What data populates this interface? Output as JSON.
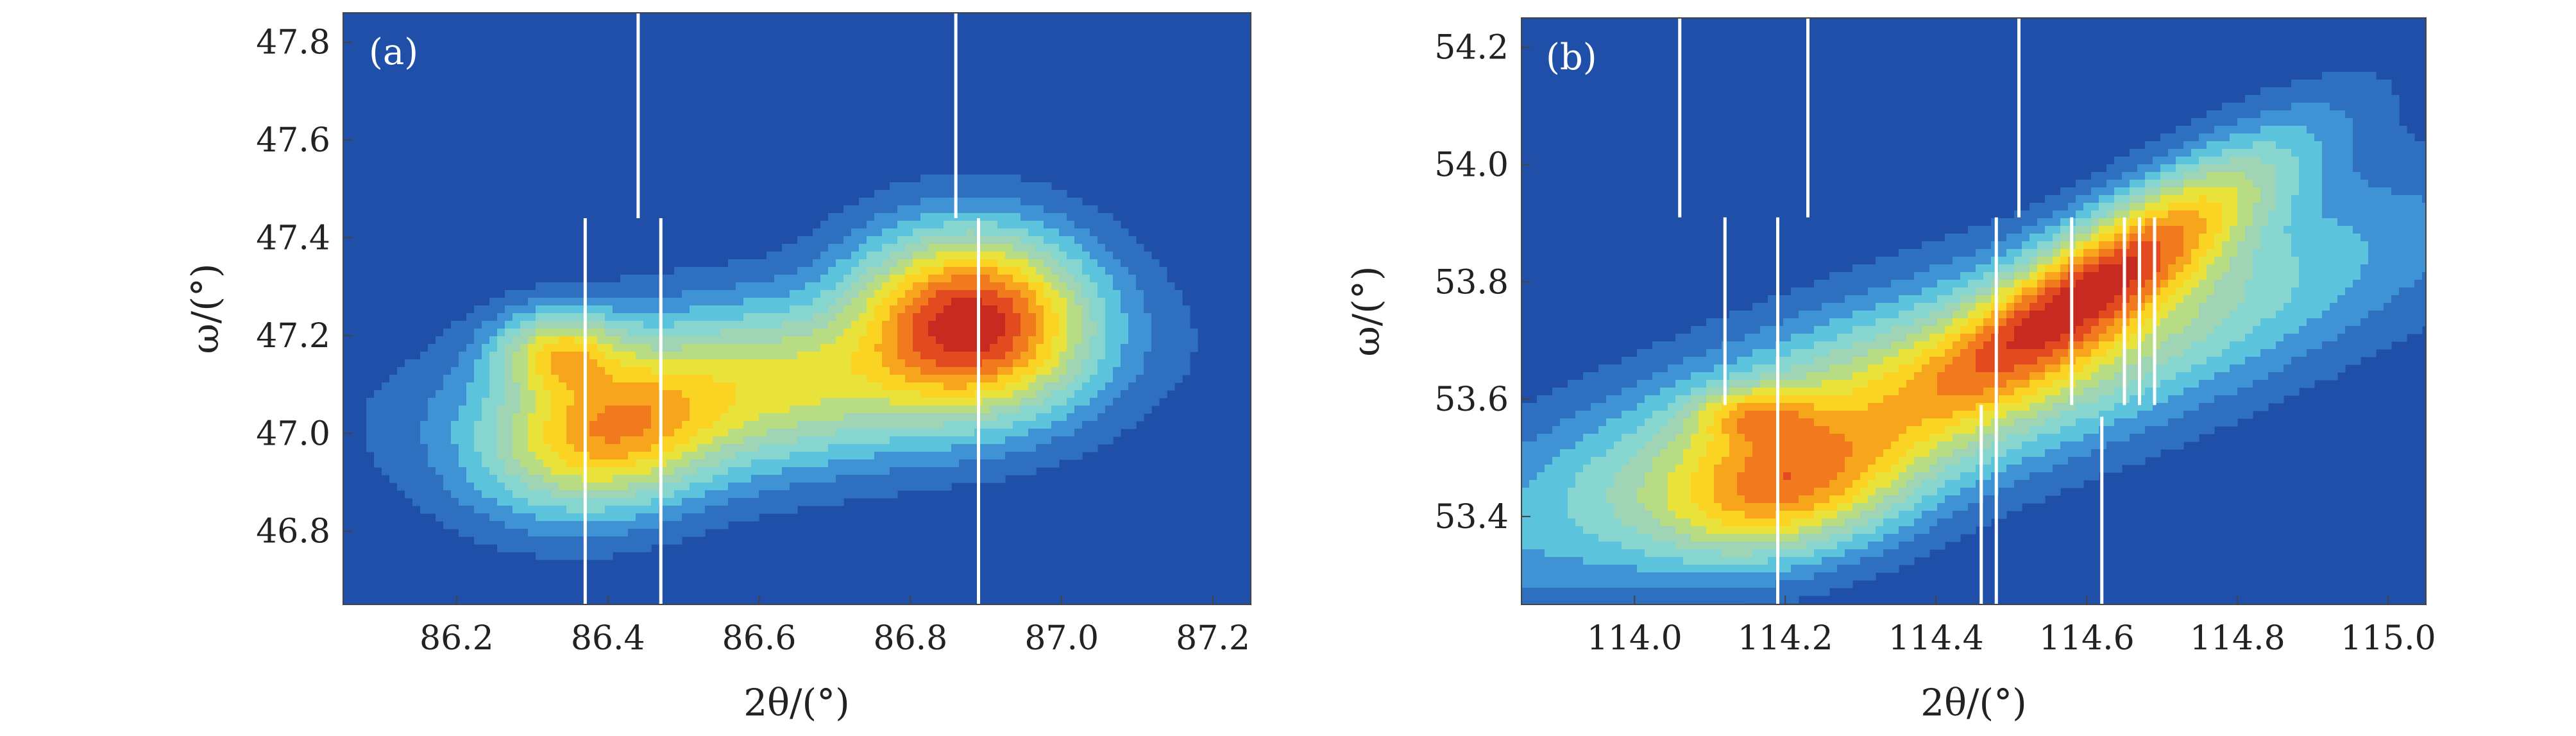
{
  "chart_data": [
    {
      "type": "heatmap",
      "subtype": "contour map",
      "panel_label": "(a)",
      "xlabel": "2θ/(°)",
      "ylabel": "ω/(°)",
      "xlim": [
        86.05,
        87.25
      ],
      "ylim": [
        46.65,
        47.86
      ],
      "xticks": [
        86.2,
        86.4,
        86.6,
        86.8,
        87.0,
        87.2
      ],
      "yticks": [
        46.8,
        47.0,
        47.2,
        47.4,
        47.6,
        47.8
      ],
      "xtick_labels": [
        "86.2",
        "86.4",
        "86.6",
        "86.8",
        "87.0",
        "87.2"
      ],
      "ytick_labels": [
        "46.8",
        "47.0",
        "47.2",
        "47.4",
        "47.6",
        "47.8"
      ],
      "peaks": [
        {
          "x": 86.88,
          "y": 47.23,
          "amp": 1.0,
          "sx": 0.085,
          "sy": 0.1,
          "rho": 0.0
        },
        {
          "x": 86.4,
          "y": 47.0,
          "amp": 0.55,
          "sx": 0.09,
          "sy": 0.09,
          "rho": 0.2
        },
        {
          "x": 86.34,
          "y": 47.16,
          "amp": 0.45,
          "sx": 0.05,
          "sy": 0.05,
          "rho": 0.0
        },
        {
          "x": 86.62,
          "y": 47.1,
          "amp": 0.4,
          "sx": 0.2,
          "sy": 0.1,
          "rho": 0.3
        }
      ],
      "guide_lines": [
        {
          "x": 86.44,
          "y0": 47.44,
          "y1": 47.86
        },
        {
          "x": 86.86,
          "y0": 47.44,
          "y1": 47.86
        },
        {
          "x": 86.37,
          "y0": 46.65,
          "y1": 47.44
        },
        {
          "x": 86.47,
          "y0": 46.65,
          "y1": 47.44
        },
        {
          "x": 86.89,
          "y0": 46.65,
          "y1": 47.44
        }
      ]
    },
    {
      "type": "heatmap",
      "subtype": "contour map",
      "panel_label": "(b)",
      "xlabel": "2θ/(°)",
      "ylabel": "ω/(°)",
      "xlim": [
        113.85,
        115.05
      ],
      "ylim": [
        53.25,
        54.25
      ],
      "xticks": [
        114.0,
        114.2,
        114.4,
        114.6,
        114.8,
        115.0
      ],
      "yticks": [
        53.4,
        53.6,
        53.8,
        54.0,
        54.2
      ],
      "xtick_labels": [
        "114.0",
        "114.2",
        "114.4",
        "114.6",
        "114.8",
        "115.0"
      ],
      "ytick_labels": [
        "53.4",
        "53.6",
        "53.8",
        "54.0",
        "54.2"
      ],
      "peaks": [
        {
          "x": 114.62,
          "y": 53.8,
          "amp": 1.0,
          "sx": 0.13,
          "sy": 0.12,
          "rho": 0.85
        },
        {
          "x": 114.2,
          "y": 53.45,
          "amp": 0.65,
          "sx": 0.1,
          "sy": 0.07,
          "rho": 0.3
        },
        {
          "x": 114.16,
          "y": 53.57,
          "amp": 0.45,
          "sx": 0.05,
          "sy": 0.03,
          "rho": 0.0
        },
        {
          "x": 114.4,
          "y": 53.62,
          "amp": 0.55,
          "sx": 0.3,
          "sy": 0.15,
          "rho": 0.8
        }
      ],
      "guide_lines": [
        {
          "x": 114.06,
          "y0": 53.91,
          "y1": 54.25
        },
        {
          "x": 114.23,
          "y0": 53.91,
          "y1": 54.25
        },
        {
          "x": 114.51,
          "y0": 53.91,
          "y1": 54.25
        },
        {
          "x": 114.12,
          "y0": 53.59,
          "y1": 53.91
        },
        {
          "x": 114.19,
          "y0": 53.25,
          "y1": 53.91
        },
        {
          "x": 114.48,
          "y0": 53.59,
          "y1": 53.91
        },
        {
          "x": 114.46,
          "y0": 53.25,
          "y1": 53.59
        },
        {
          "x": 114.48,
          "y0": 53.25,
          "y1": 53.59
        },
        {
          "x": 114.58,
          "y0": 53.59,
          "y1": 53.91
        },
        {
          "x": 114.65,
          "y0": 53.59,
          "y1": 53.91
        },
        {
          "x": 114.67,
          "y0": 53.59,
          "y1": 53.91
        },
        {
          "x": 114.69,
          "y0": 53.59,
          "y1": 53.91
        },
        {
          "x": 114.62,
          "y0": 53.25,
          "y1": 53.57
        }
      ]
    }
  ],
  "colors": {
    "background": "#1f4fa8",
    "levels": [
      "#1f4fa8",
      "#2e6fc0",
      "#3f93d4",
      "#5cc3dc",
      "#86d6cf",
      "#9fd4b4",
      "#b8dc83",
      "#e8e23a",
      "#fbd323",
      "#f7a51d",
      "#f07a1d",
      "#e24a1f",
      "#c62a20"
    ],
    "guide_line": "#ffffff"
  }
}
